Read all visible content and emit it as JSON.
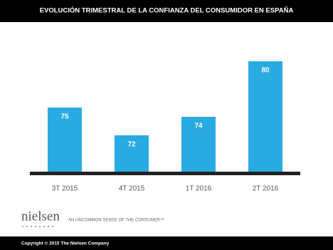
{
  "chart_data": {
    "type": "bar",
    "title": "EVOLUCIÓN TRIMESTRAL DE LA CONFIANZA DEL CONSUMIDOR EN ESPAÑA",
    "categories": [
      "3T 2015",
      "4T 2015",
      "1T 2016",
      "2T 2016"
    ],
    "values": [
      75,
      72,
      74,
      80
    ],
    "color": "#29abe2",
    "ylim": [
      68,
      81
    ]
  },
  "footer": {
    "logo": "nielsen",
    "tagline": "AN UNCOMMON SENSE OF THE CONSUMER™",
    "copyright": "Copyright © 2015 The Nielsen Company"
  }
}
